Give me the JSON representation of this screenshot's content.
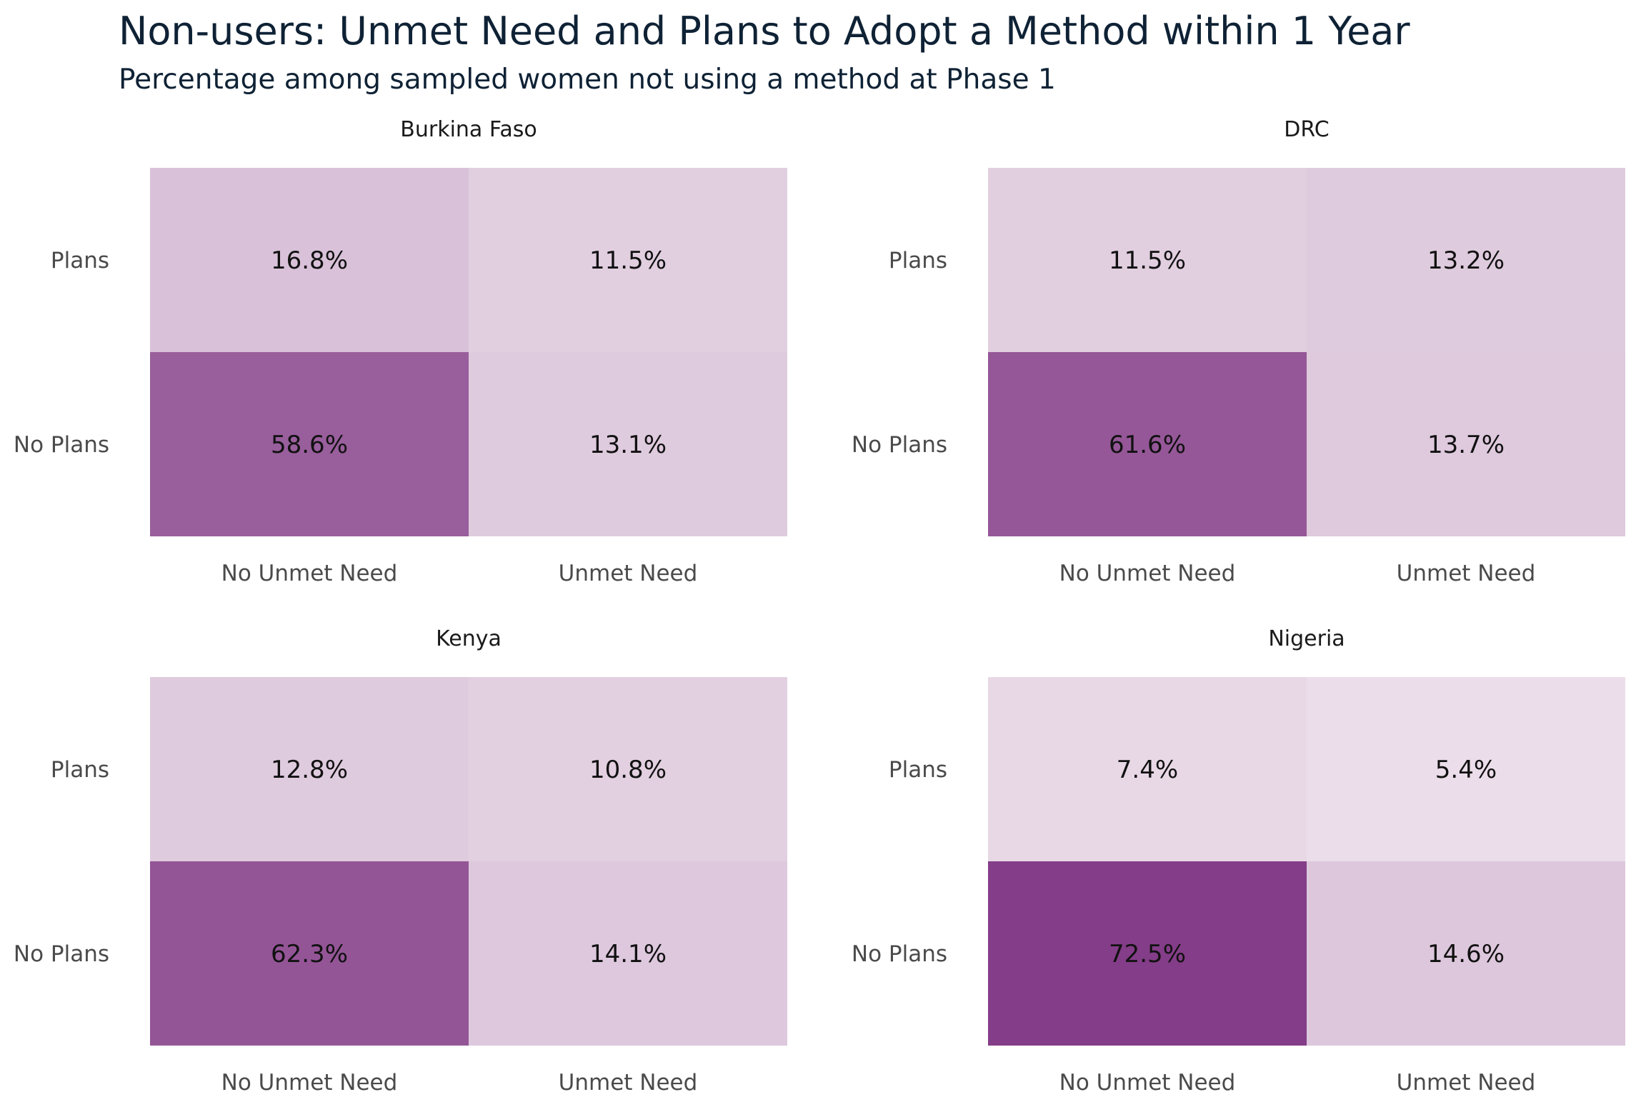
{
  "chart_data": {
    "type": "heatmap",
    "title": "Non-users: Unmet Need and Plans to Adopt a Method within 1 Year",
    "subtitle": "Percentage among sampled women not using a method at Phase 1",
    "x_categories": [
      "No Unmet Need",
      "Unmet Need"
    ],
    "y_categories": [
      "Plans",
      "No Plans"
    ],
    "color_scale": {
      "low": "#f3eaf1",
      "high": "#843d88",
      "min": 0,
      "max": 72.5
    },
    "facets": [
      {
        "name": "Burkina Faso",
        "values": [
          [
            16.8,
            11.5
          ],
          [
            58.6,
            13.1
          ]
        ],
        "labels": [
          [
            "16.8%",
            "11.5%"
          ],
          [
            "58.6%",
            "13.1%"
          ]
        ]
      },
      {
        "name": "DRC",
        "values": [
          [
            11.5,
            13.2
          ],
          [
            61.6,
            13.7
          ]
        ],
        "labels": [
          [
            "11.5%",
            "13.2%"
          ],
          [
            "61.6%",
            "13.7%"
          ]
        ]
      },
      {
        "name": "Kenya",
        "values": [
          [
            12.8,
            10.8
          ],
          [
            62.3,
            14.1
          ]
        ],
        "labels": [
          [
            "12.8%",
            "10.8%"
          ],
          [
            "62.3%",
            "14.1%"
          ]
        ]
      },
      {
        "name": "Nigeria",
        "values": [
          [
            7.4,
            5.4
          ],
          [
            72.5,
            14.6
          ]
        ],
        "labels": [
          [
            "7.4%",
            "5.4%"
          ],
          [
            "72.5%",
            "14.6%"
          ]
        ]
      }
    ]
  }
}
